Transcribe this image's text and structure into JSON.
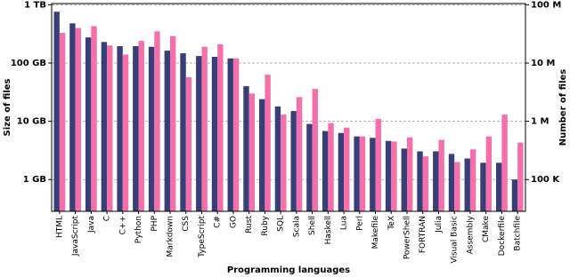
{
  "chart_data": {
    "type": "bar",
    "log_scale": true,
    "grid": true,
    "xlabel": "Programming languages",
    "ylabel": "Size of files",
    "y2label": "Number of files",
    "categories": [
      "HTML",
      "JavaScript",
      "Java",
      "C",
      "C++",
      "Python",
      "PHP",
      "Markdown",
      "CSS",
      "TypeScript",
      "C#",
      "GO",
      "Rust",
      "Ruby",
      "SQL",
      "Scala",
      "Shell",
      "Haskell",
      "Lua",
      "Perl",
      "Makefile",
      "TeX",
      "PowerShell",
      "FORTRAN",
      "Julia",
      "Visual Basic",
      "Assembly",
      "CMake",
      "Dockerfile",
      "Batchfile"
    ],
    "series": [
      {
        "color": "#383e78",
        "values": [
          760,
          480,
          275,
          230,
          195,
          195,
          190,
          163,
          147,
          132,
          128,
          120,
          40,
          24,
          18,
          15,
          9,
          6.8,
          6.3,
          5.5,
          5.2,
          4.6,
          3.4,
          3.05,
          3.05,
          2.75,
          2.3,
          1.94,
          1.94,
          1.0
        ]
      },
      {
        "color": "#f56fab",
        "axis": "y2",
        "values": [
          33000000,
          40000000,
          43000000,
          20000000,
          14000000,
          24000000,
          35000000,
          29000000,
          5700000,
          19000000,
          21000000,
          12000000,
          3000000,
          6300000,
          1300000,
          2600000,
          3600000,
          930000,
          780000,
          550000,
          1100000,
          450000,
          530000,
          250000,
          480000,
          200000,
          330000,
          550000,
          1300000,
          430000
        ]
      }
    ],
    "ylim": [
      0.285,
      1050
    ],
    "yticks": [
      {
        "value": 1,
        "label": "1 GB"
      },
      {
        "value": 10,
        "label": "10 GB"
      },
      {
        "value": 100,
        "label": "100 GB"
      },
      {
        "value": 1000,
        "label": "1 TB"
      }
    ],
    "y2lim": [
      28500,
      105000000
    ],
    "y2ticks": [
      {
        "value": 100000,
        "label": "100 K"
      },
      {
        "value": 1000000,
        "label": "1 M"
      },
      {
        "value": 10000000,
        "label": "10 M"
      },
      {
        "value": 100000000,
        "label": "100 M"
      }
    ]
  }
}
